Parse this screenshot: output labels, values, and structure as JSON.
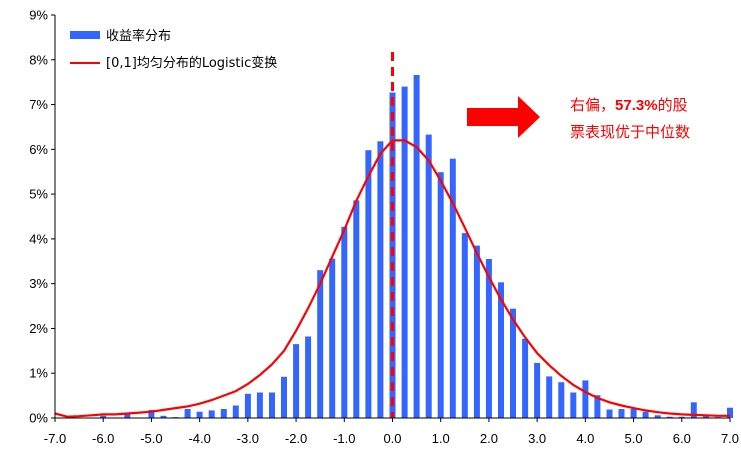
{
  "chart_data": {
    "type": "bar",
    "title": "",
    "xlabel": "",
    "ylabel": "",
    "xlim": [
      -7.0,
      7.0
    ],
    "ylim": [
      0,
      9
    ],
    "x_ticks": [
      "-7.0",
      "-6.0",
      "-5.0",
      "-4.0",
      "-3.0",
      "-2.0",
      "-1.0",
      "0.0",
      "1.0",
      "2.0",
      "3.0",
      "4.0",
      "5.0",
      "6.0",
      "7.0"
    ],
    "y_ticks": [
      "0%",
      "1%",
      "2%",
      "3%",
      "4%",
      "5%",
      "6%",
      "7%",
      "8%",
      "9%"
    ],
    "grid": false,
    "legend_position": "top-left",
    "colors": {
      "bars": "#3366ff",
      "curve": "#ff0000",
      "median_line": "#ff0000",
      "arrow": "#ff0000"
    },
    "series": [
      {
        "name": "收益率分布",
        "type": "bar",
        "x": [
          -6.0,
          -5.5,
          -5.0,
          -4.75,
          -4.5,
          -4.25,
          -4.0,
          -3.75,
          -3.5,
          -3.25,
          -3.0,
          -2.75,
          -2.5,
          -2.25,
          -2.0,
          -1.75,
          -1.5,
          -1.25,
          -1.0,
          -0.75,
          -0.5,
          -0.25,
          0.0,
          0.25,
          0.5,
          0.75,
          1.0,
          1.25,
          1.5,
          1.75,
          2.0,
          2.25,
          2.5,
          2.75,
          3.0,
          3.25,
          3.5,
          3.75,
          4.0,
          4.25,
          4.5,
          4.75,
          5.0,
          5.25,
          5.5,
          5.75,
          6.0,
          6.25,
          6.5,
          6.75,
          7.0
        ],
        "values": [
          0.05,
          0.1,
          0.18,
          0.05,
          0.02,
          0.2,
          0.14,
          0.17,
          0.2,
          0.28,
          0.54,
          0.57,
          0.57,
          0.92,
          1.65,
          1.82,
          3.3,
          3.56,
          4.27,
          4.86,
          5.98,
          6.18,
          7.27,
          7.4,
          7.66,
          6.33,
          5.49,
          5.79,
          4.13,
          3.85,
          3.55,
          3.03,
          2.44,
          1.77,
          1.23,
          0.93,
          0.8,
          0.57,
          0.84,
          0.51,
          0.19,
          0.2,
          0.2,
          0.14,
          0.06,
          0.03,
          0.03,
          0.35,
          0.04,
          0.02,
          0.23
        ]
      },
      {
        "name": "[0,1]均匀分布的Logistic变换",
        "type": "line",
        "x": [
          -7.0,
          -6.75,
          -6.5,
          -6.25,
          -6.0,
          -5.75,
          -5.5,
          -5.25,
          -5.0,
          -4.75,
          -4.5,
          -4.25,
          -4.0,
          -3.75,
          -3.5,
          -3.25,
          -3.0,
          -2.75,
          -2.5,
          -2.25,
          -2.0,
          -1.75,
          -1.5,
          -1.25,
          -1.0,
          -0.75,
          -0.5,
          -0.25,
          0.0,
          0.25,
          0.5,
          0.75,
          1.0,
          1.25,
          1.5,
          1.75,
          2.0,
          2.25,
          2.5,
          2.75,
          3.0,
          3.25,
          3.5,
          3.75,
          4.0,
          4.25,
          4.5,
          4.75,
          5.0,
          5.25,
          5.5,
          5.75,
          6.0,
          6.25,
          6.5,
          6.75,
          7.0
        ],
        "values": [
          0.1,
          0.03,
          0.04,
          0.06,
          0.08,
          0.08,
          0.1,
          0.12,
          0.14,
          0.18,
          0.22,
          0.26,
          0.32,
          0.4,
          0.5,
          0.6,
          0.76,
          0.96,
          1.2,
          1.5,
          1.95,
          2.45,
          3.0,
          3.6,
          4.2,
          4.85,
          5.4,
          5.9,
          6.2,
          6.2,
          6.05,
          5.75,
          5.3,
          4.8,
          4.25,
          3.68,
          3.15,
          2.65,
          2.2,
          1.8,
          1.45,
          1.18,
          0.94,
          0.74,
          0.58,
          0.45,
          0.35,
          0.28,
          0.22,
          0.17,
          0.13,
          0.1,
          0.08,
          0.07,
          0.06,
          0.05,
          0.05
        ]
      }
    ],
    "median_line_x": 0.0,
    "annotation": {
      "line1_prefix": "右偏，",
      "line1_value": "57.3%",
      "line1_suffix": "的股",
      "line2": "票表现优于中位数"
    }
  }
}
